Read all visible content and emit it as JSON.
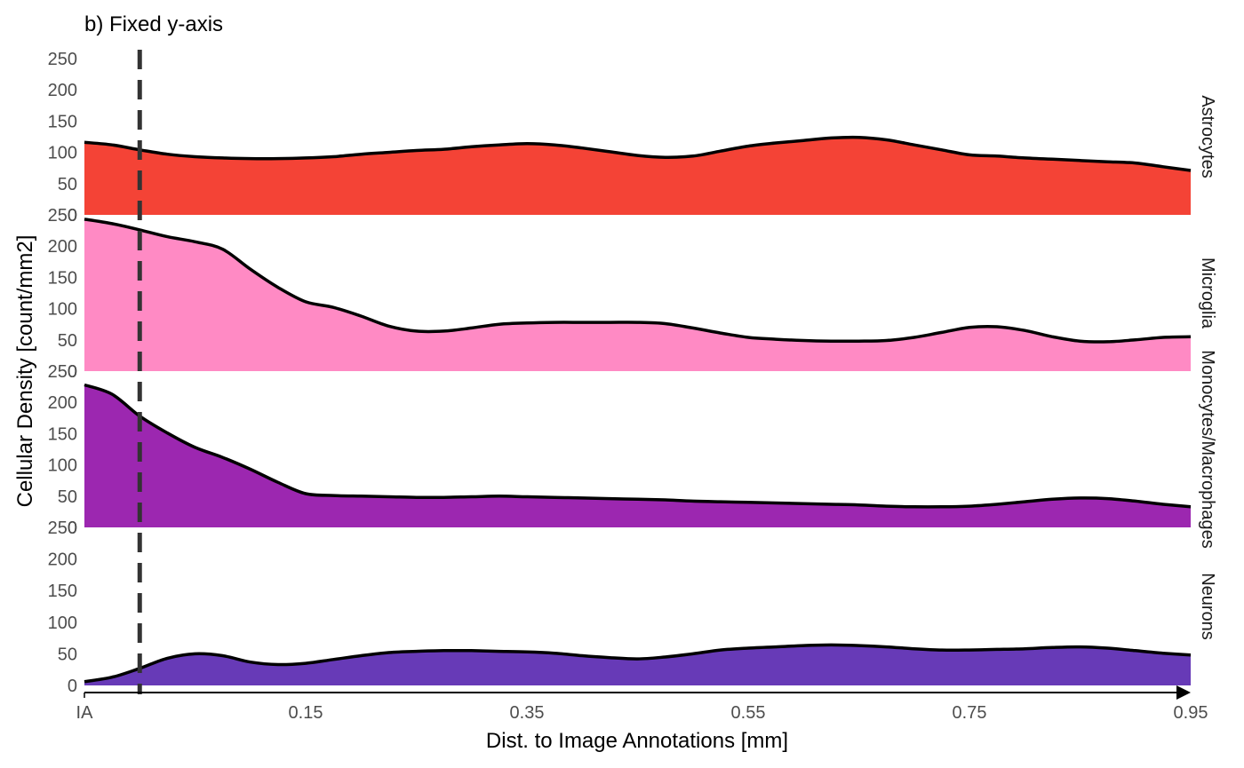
{
  "chart_data": {
    "type": "area",
    "title": "b) Fixed y-axis",
    "xlabel": "Dist. to Image Annotations [mm]",
    "ylabel": "Cellular Density [count/mm2]",
    "xlim": [
      0,
      1.0
    ],
    "ylim": [
      0,
      250
    ],
    "x_ticks": [
      {
        "label": "IA",
        "value": 0
      },
      {
        "label": "0.15",
        "value": 0.2
      },
      {
        "label": "0.35",
        "value": 0.4
      },
      {
        "label": "0.55",
        "value": 0.6
      },
      {
        "label": "0.75",
        "value": 0.8
      },
      {
        "label": "0.95",
        "value": 1.0
      }
    ],
    "y_ticks": [
      "0",
      "50",
      "100",
      "150",
      "200",
      "250"
    ],
    "y_tick_values": [
      0,
      50,
      100,
      150,
      200,
      250
    ],
    "vline": {
      "x": 0.05,
      "style": "dashed",
      "color": "#333333"
    },
    "grid": false,
    "x": [
      0,
      0.025,
      0.05,
      0.075,
      0.1,
      0.125,
      0.15,
      0.175,
      0.2,
      0.225,
      0.25,
      0.275,
      0.3,
      0.325,
      0.35,
      0.375,
      0.4,
      0.425,
      0.45,
      0.475,
      0.5,
      0.525,
      0.55,
      0.575,
      0.6,
      0.625,
      0.65,
      0.675,
      0.7,
      0.725,
      0.75,
      0.775,
      0.8,
      0.825,
      0.85,
      0.875,
      0.9,
      0.925,
      0.95,
      0.975,
      1.0
    ],
    "series": [
      {
        "name": "Astrocytes",
        "color": "#f44336",
        "values": [
          116,
          112,
          104,
          97,
          93,
          91,
          90,
          90,
          91,
          93,
          97,
          100,
          103,
          105,
          109,
          112,
          114,
          112,
          107,
          101,
          95,
          92,
          94,
          102,
          110,
          115,
          119,
          123,
          124,
          120,
          112,
          104,
          96,
          94,
          91,
          89,
          87,
          85,
          83,
          77,
          71
        ]
      },
      {
        "name": "Microglia",
        "color": "#ff8ac4",
        "values": [
          243,
          236,
          226,
          215,
          207,
          195,
          163,
          134,
          111,
          102,
          88,
          72,
          64,
          64,
          69,
          75,
          77,
          78,
          78,
          78,
          78,
          76,
          69,
          61,
          54,
          51,
          49,
          48,
          48,
          49,
          54,
          62,
          70,
          71,
          65,
          55,
          48,
          47,
          50,
          54,
          55
        ]
      },
      {
        "name": "Monocytes/Macrophages",
        "color": "#9c27b0",
        "values": [
          228,
          213,
          178,
          151,
          128,
          112,
          93,
          72,
          54,
          51,
          50,
          49,
          48,
          48,
          49,
          50,
          49,
          48,
          47,
          46,
          45,
          44,
          42,
          41,
          40,
          39,
          38,
          37,
          36,
          34,
          33,
          33,
          34,
          37,
          41,
          45,
          47,
          46,
          42,
          37,
          33
        ]
      },
      {
        "name": "Neurons",
        "color": "#673ab7",
        "values": [
          6,
          13,
          27,
          43,
          50,
          47,
          37,
          33,
          35,
          41,
          47,
          52,
          54,
          55,
          55,
          54,
          53,
          51,
          47,
          44,
          42,
          45,
          50,
          56,
          59,
          61,
          63,
          64,
          63,
          61,
          58,
          56,
          56,
          57,
          58,
          60,
          61,
          59,
          55,
          51,
          48
        ]
      }
    ]
  }
}
